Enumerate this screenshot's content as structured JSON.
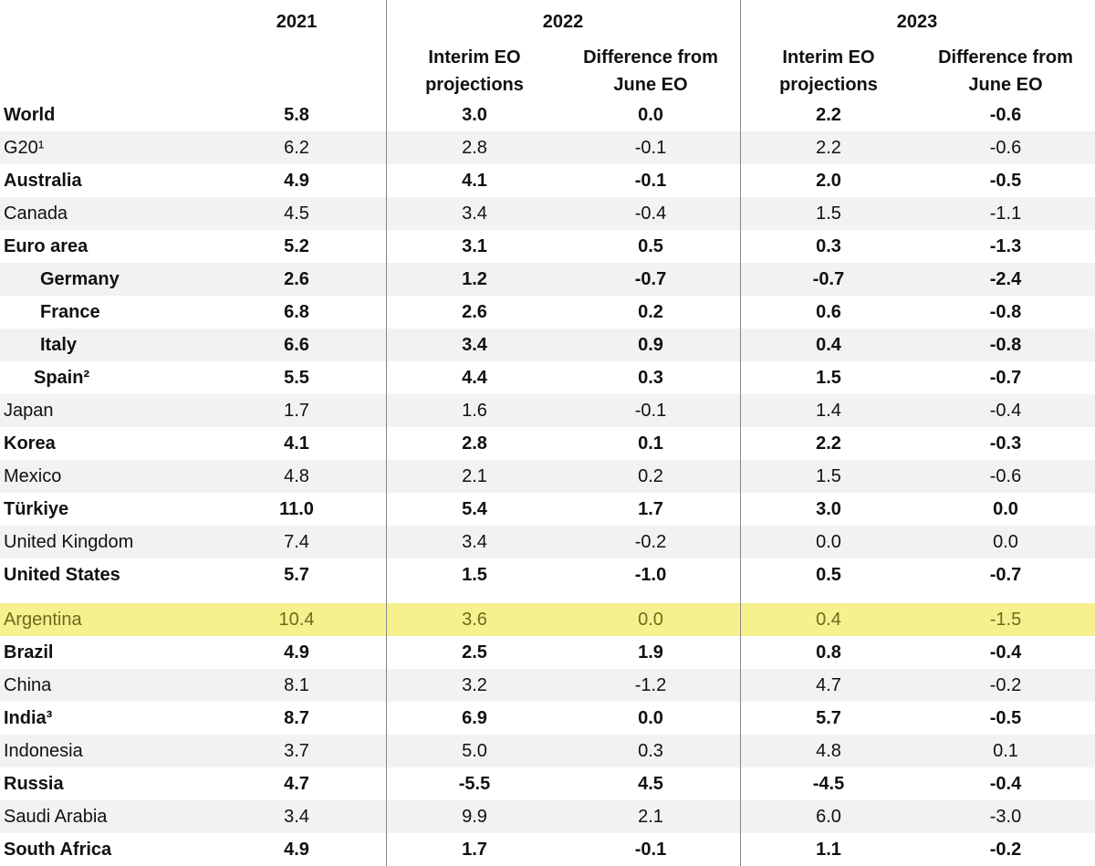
{
  "header": {
    "years": [
      "2021",
      "2022",
      "2023"
    ],
    "subheaders": [
      "Interim EO projections",
      "Difference from June EO",
      "Interim EO projections",
      "Difference from June EO"
    ]
  },
  "table": {
    "groups": [
      {
        "rows": [
          {
            "label": "World",
            "bold": true,
            "cells": [
              "5.8",
              "3.0",
              "0.0",
              "2.2",
              "-0.6"
            ]
          },
          {
            "label": "G20¹",
            "bold": false,
            "cells": [
              "6.2",
              "2.8",
              "-0.1",
              "2.2",
              "-0.6"
            ]
          },
          {
            "label": "Australia",
            "bold": true,
            "cells": [
              "4.9",
              "4.1",
              "-0.1",
              "2.0",
              "-0.5"
            ]
          },
          {
            "label": "Canada",
            "bold": false,
            "cells": [
              "4.5",
              "3.4",
              "-0.4",
              "1.5",
              "-1.1"
            ]
          },
          {
            "label": "Euro area",
            "bold": true,
            "cells": [
              "5.2",
              "3.1",
              "0.5",
              "0.3",
              "-1.3"
            ]
          },
          {
            "label": "Germany",
            "bold": true,
            "cells": [
              "2.6",
              "1.2",
              "-0.7",
              "-0.7",
              "-2.4"
            ]
          },
          {
            "label": "France",
            "bold": true,
            "cells": [
              "6.8",
              "2.6",
              "0.2",
              "0.6",
              "-0.8"
            ]
          },
          {
            "label": "Italy",
            "bold": true,
            "cells": [
              "6.6",
              "3.4",
              "0.9",
              "0.4",
              "-0.8"
            ]
          },
          {
            "label": "Spain²",
            "bold": true,
            "cells": [
              "5.5",
              "4.4",
              "0.3",
              "1.5",
              "-0.7"
            ]
          },
          {
            "label": "Japan",
            "bold": false,
            "cells": [
              "1.7",
              "1.6",
              "-0.1",
              "1.4",
              "-0.4"
            ]
          },
          {
            "label": "Korea",
            "bold": true,
            "cells": [
              "4.1",
              "2.8",
              "0.1",
              "2.2",
              "-0.3"
            ]
          },
          {
            "label": "Mexico",
            "bold": false,
            "cells": [
              "4.8",
              "2.1",
              "0.2",
              "1.5",
              "-0.6"
            ]
          },
          {
            "label": "Türkiye",
            "bold": true,
            "cells": [
              "11.0",
              "5.4",
              "1.7",
              "3.0",
              "0.0"
            ]
          },
          {
            "label": "United Kingdom",
            "bold": false,
            "cells": [
              "7.4",
              "3.4",
              "-0.2",
              "0.0",
              "0.0"
            ]
          },
          {
            "label": "United States",
            "bold": true,
            "cells": [
              "5.7",
              "1.5",
              "-1.0",
              "0.5",
              "-0.7"
            ]
          }
        ]
      },
      {
        "rows": [
          {
            "label": "Argentina",
            "bold": false,
            "highlight": true,
            "cells": [
              "10.4",
              "3.6",
              "0.0",
              "0.4",
              "-1.5"
            ]
          },
          {
            "label": "Brazil",
            "bold": true,
            "cells": [
              "4.9",
              "2.5",
              "1.9",
              "0.8",
              "-0.4"
            ]
          },
          {
            "label": "China",
            "bold": false,
            "cells": [
              "8.1",
              "3.2",
              "-1.2",
              "4.7",
              "-0.2"
            ]
          },
          {
            "label": "India³",
            "bold": true,
            "cells": [
              "8.7",
              "6.9",
              "0.0",
              "5.7",
              "-0.5"
            ]
          },
          {
            "label": "Indonesia",
            "bold": false,
            "cells": [
              "3.7",
              "5.0",
              "0.3",
              "4.8",
              "0.1"
            ]
          },
          {
            "label": "Russia",
            "bold": true,
            "cells": [
              "4.7",
              "-5.5",
              "4.5",
              "-4.5",
              "-0.4"
            ]
          },
          {
            "label": "Saudi Arabia",
            "bold": false,
            "cells": [
              "3.4",
              "9.9",
              "2.1",
              "6.0",
              "-3.0"
            ]
          },
          {
            "label": "South Africa",
            "bold": true,
            "cells": [
              "4.9",
              "1.7",
              "-0.1",
              "1.1",
              "-0.2"
            ]
          }
        ]
      }
    ]
  }
}
